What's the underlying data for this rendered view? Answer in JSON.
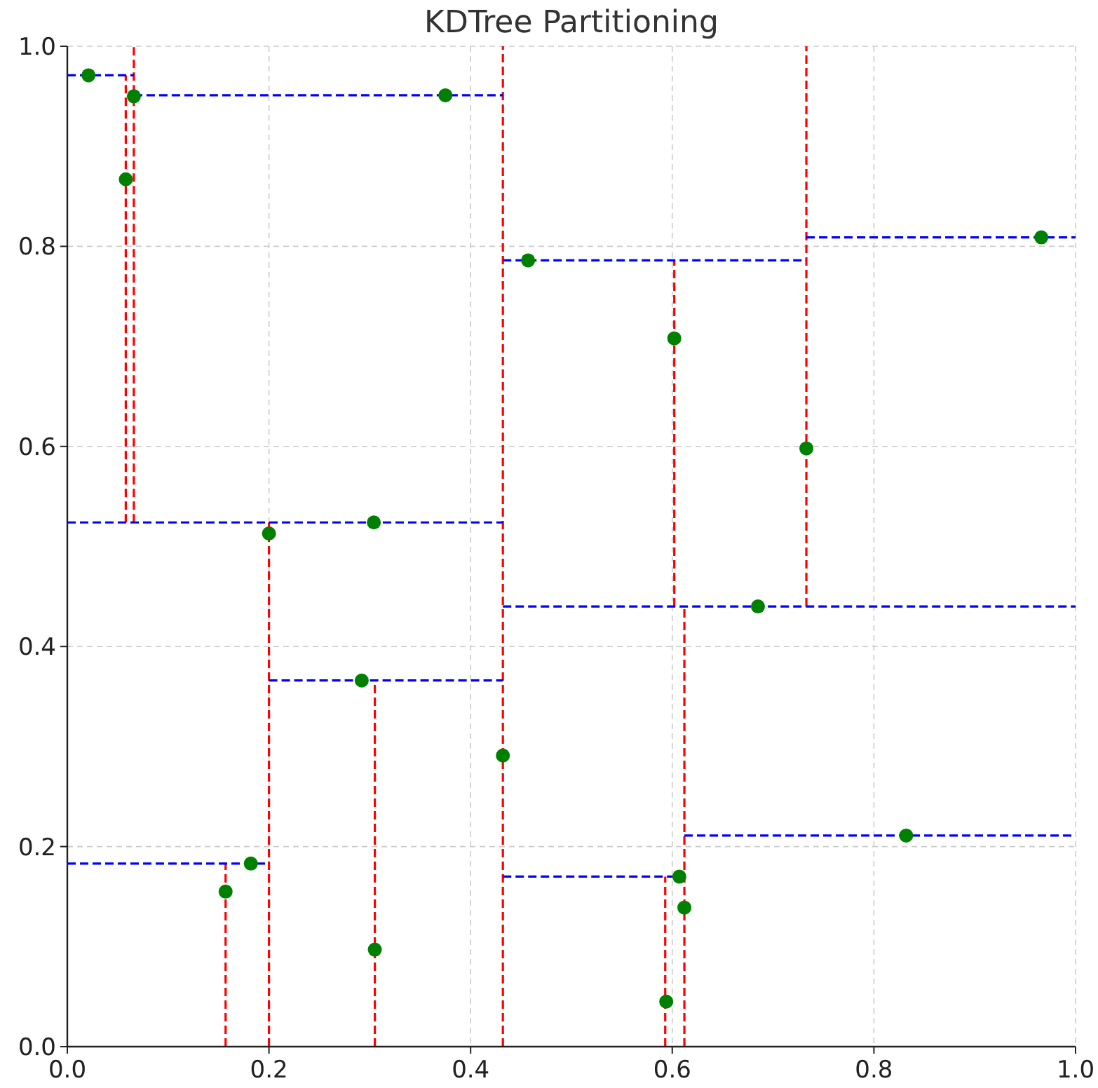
{
  "chart_data": {
    "type": "scatter",
    "title": "KDTree Partitioning",
    "xlim": [
      0,
      1
    ],
    "ylim": [
      0,
      1
    ],
    "xticks": [
      {
        "value": 0,
        "label": "0.0"
      },
      {
        "value": 0.2,
        "label": "0.2"
      },
      {
        "value": 0.4,
        "label": "0.4"
      },
      {
        "value": 0.6,
        "label": "0.6"
      },
      {
        "value": 0.8,
        "label": "0.8"
      },
      {
        "value": 1,
        "label": "1.0"
      }
    ],
    "yticks": [
      {
        "value": 0,
        "label": "0.0"
      },
      {
        "value": 0.2,
        "label": "0.2"
      },
      {
        "value": 0.4,
        "label": "0.4"
      },
      {
        "value": 0.6,
        "label": "0.6"
      },
      {
        "value": 0.8,
        "label": "0.8"
      },
      {
        "value": 1,
        "label": "1.0"
      }
    ],
    "grid": true,
    "series": [
      {
        "type": "line",
        "color": "#ff0000",
        "line_style": "dashed",
        "marker": "none",
        "x": [
          0.432,
          0.432
        ],
        "values": [
          0,
          1
        ]
      },
      {
        "type": "line",
        "color": "#ff0000",
        "line_style": "dashed",
        "marker": "none",
        "x": [
          0.066,
          0.066
        ],
        "values": [
          0.524,
          1
        ]
      },
      {
        "type": "line",
        "color": "#ff0000",
        "line_style": "dashed",
        "marker": "none",
        "x": [
          0.058,
          0.058
        ],
        "values": [
          0.524,
          0.971
        ]
      },
      {
        "type": "line",
        "color": "#ff0000",
        "line_style": "dashed",
        "marker": "none",
        "x": [
          0.2,
          0.2
        ],
        "values": [
          0,
          0.524
        ]
      },
      {
        "type": "line",
        "color": "#ff0000",
        "line_style": "dashed",
        "marker": "none",
        "x": [
          0.305,
          0.305
        ],
        "values": [
          0,
          0.366
        ]
      },
      {
        "type": "line",
        "color": "#ff0000",
        "line_style": "dashed",
        "marker": "none",
        "x": [
          0.157,
          0.157
        ],
        "values": [
          0,
          0.183
        ]
      },
      {
        "type": "line",
        "color": "#ff0000",
        "line_style": "dashed",
        "marker": "none",
        "x": [
          0.733,
          0.733
        ],
        "values": [
          0.44,
          1
        ]
      },
      {
        "type": "line",
        "color": "#ff0000",
        "line_style": "dashed",
        "marker": "none",
        "x": [
          0.602,
          0.602
        ],
        "values": [
          0.44,
          0.786
        ]
      },
      {
        "type": "line",
        "color": "#ff0000",
        "line_style": "dashed",
        "marker": "none",
        "x": [
          0.612,
          0.612
        ],
        "values": [
          0,
          0.44
        ]
      },
      {
        "type": "line",
        "color": "#ff0000",
        "line_style": "dashed",
        "marker": "none",
        "x": [
          0.593,
          0.593
        ],
        "values": [
          0,
          0.17
        ]
      },
      {
        "type": "line",
        "color": "#0000ff",
        "line_style": "dashed",
        "marker": "none",
        "x": [
          0,
          0.432
        ],
        "values": [
          0.524,
          0.524
        ]
      },
      {
        "type": "line",
        "color": "#0000ff",
        "line_style": "dashed",
        "marker": "none",
        "x": [
          0,
          0.066
        ],
        "values": [
          0.971,
          0.971
        ]
      },
      {
        "type": "line",
        "color": "#0000ff",
        "line_style": "dashed",
        "marker": "none",
        "x": [
          0.066,
          0.432
        ],
        "values": [
          0.951,
          0.951
        ]
      },
      {
        "type": "line",
        "color": "#0000ff",
        "line_style": "dashed",
        "marker": "none",
        "x": [
          0.2,
          0.432
        ],
        "values": [
          0.366,
          0.366
        ]
      },
      {
        "type": "line",
        "color": "#0000ff",
        "line_style": "dashed",
        "marker": "none",
        "x": [
          0,
          0.2
        ],
        "values": [
          0.183,
          0.183
        ]
      },
      {
        "type": "line",
        "color": "#0000ff",
        "line_style": "dashed",
        "marker": "none",
        "x": [
          0.432,
          1
        ],
        "values": [
          0.44,
          0.44
        ]
      },
      {
        "type": "line",
        "color": "#0000ff",
        "line_style": "dashed",
        "marker": "none",
        "x": [
          0.432,
          0.733
        ],
        "values": [
          0.786,
          0.786
        ]
      },
      {
        "type": "line",
        "color": "#0000ff",
        "line_style": "dashed",
        "marker": "none",
        "x": [
          0.733,
          1
        ],
        "values": [
          0.809,
          0.809
        ]
      },
      {
        "type": "line",
        "color": "#0000ff",
        "line_style": "dashed",
        "marker": "none",
        "x": [
          0.612,
          1
        ],
        "values": [
          0.211,
          0.211
        ]
      },
      {
        "type": "line",
        "color": "#0000ff",
        "line_style": "dashed",
        "marker": "none",
        "x": [
          0.432,
          0.607
        ],
        "values": [
          0.17,
          0.17
        ]
      },
      {
        "type": "scatter",
        "color": "#008000",
        "marker": "circle",
        "x": [
          0.021,
          0.066,
          0.058,
          0.375,
          0.2,
          0.304,
          0.292,
          0.305,
          0.432,
          0.182,
          0.157,
          0.457,
          0.602,
          0.733,
          0.966,
          0.685,
          0.832,
          0.607,
          0.612,
          0.594
        ],
        "values": [
          0.971,
          0.95,
          0.867,
          0.951,
          0.513,
          0.524,
          0.366,
          0.097,
          0.291,
          0.183,
          0.155,
          0.786,
          0.708,
          0.598,
          0.809,
          0.44,
          0.211,
          0.17,
          0.139,
          0.045
        ]
      }
    ]
  }
}
